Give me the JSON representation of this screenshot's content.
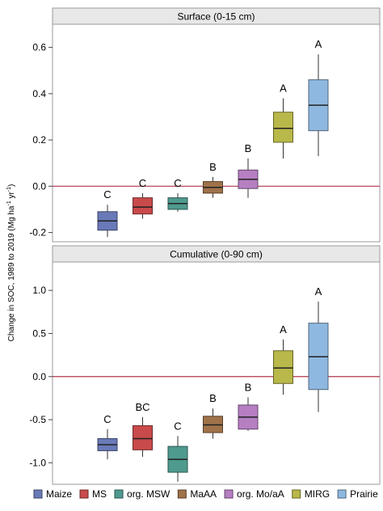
{
  "ylabel": {
    "prefix": "Change in SOC, 1989 to 2019 (Mg ha",
    "sup1": "-1",
    "mid": " yr",
    "sup2": "-1",
    "suffix": ")"
  },
  "legend": {
    "position": "bottom"
  },
  "chart_data": [
    {
      "type": "box",
      "title": "Surface (0-15 cm)",
      "ylim": [
        -0.24,
        0.7
      ],
      "yticks": [
        -0.2,
        0.0,
        0.2,
        0.4,
        0.6
      ],
      "ytick_labels": [
        "-0.2",
        "0.0",
        "0.2",
        "0.4",
        "0.6"
      ],
      "reference_line": 0.0,
      "reference_color": "#b0344b",
      "series": [
        {
          "name": "Maize",
          "color": "#6a7ab8",
          "whisker_low": -0.22,
          "q1": -0.19,
          "median": -0.15,
          "q3": -0.11,
          "whisker_high": -0.08,
          "label": "C"
        },
        {
          "name": "MS",
          "color": "#c94a4a",
          "whisker_low": -0.14,
          "q1": -0.12,
          "median": -0.09,
          "q3": -0.05,
          "whisker_high": -0.03,
          "label": "C"
        },
        {
          "name": "org. MSW",
          "color": "#4f9a8e",
          "whisker_low": -0.11,
          "q1": -0.1,
          "median": -0.075,
          "q3": -0.05,
          "whisker_high": -0.03,
          "label": "C"
        },
        {
          "name": "MaAA",
          "color": "#a0724a",
          "whisker_low": -0.05,
          "q1": -0.03,
          "median": -0.005,
          "q3": 0.02,
          "whisker_high": 0.04,
          "label": "B"
        },
        {
          "name": "org. Mo/aA",
          "color": "#b67fc2",
          "whisker_low": -0.05,
          "q1": -0.01,
          "median": 0.03,
          "q3": 0.07,
          "whisker_high": 0.12,
          "label": "B"
        },
        {
          "name": "MIRG",
          "color": "#b9b84a",
          "whisker_low": 0.12,
          "q1": 0.19,
          "median": 0.25,
          "q3": 0.32,
          "whisker_high": 0.38,
          "label": "A"
        },
        {
          "name": "Prairie",
          "color": "#8fb8e0",
          "whisker_low": 0.13,
          "q1": 0.24,
          "median": 0.35,
          "q3": 0.46,
          "whisker_high": 0.57,
          "label": "A"
        }
      ]
    },
    {
      "type": "box",
      "title": "Cumulative (0-90 cm)",
      "ylim": [
        -1.25,
        1.33
      ],
      "yticks": [
        -1.0,
        -0.5,
        0.0,
        0.5,
        1.0
      ],
      "ytick_labels": [
        "-1.0",
        "-0.5",
        "0.0",
        "0.5",
        "1.0"
      ],
      "reference_line": 0.0,
      "reference_color": "#b0344b",
      "series": [
        {
          "name": "Maize",
          "color": "#6a7ab8",
          "whisker_low": -0.96,
          "q1": -0.86,
          "median": -0.79,
          "q3": -0.72,
          "whisker_high": -0.61,
          "label": "C"
        },
        {
          "name": "MS",
          "color": "#c94a4a",
          "whisker_low": -0.93,
          "q1": -0.85,
          "median": -0.72,
          "q3": -0.57,
          "whisker_high": -0.47,
          "label": "BC"
        },
        {
          "name": "org. MSW",
          "color": "#4f9a8e",
          "whisker_low": -1.22,
          "q1": -1.11,
          "median": -0.96,
          "q3": -0.81,
          "whisker_high": -0.69,
          "label": "C"
        },
        {
          "name": "MaAA",
          "color": "#a0724a",
          "whisker_low": -0.72,
          "q1": -0.65,
          "median": -0.56,
          "q3": -0.46,
          "whisker_high": -0.37,
          "label": "B"
        },
        {
          "name": "org. Mo/aA",
          "color": "#b67fc2",
          "whisker_low": -0.63,
          "q1": -0.61,
          "median": -0.47,
          "q3": -0.33,
          "whisker_high": -0.24,
          "label": "B"
        },
        {
          "name": "MIRG",
          "color": "#b9b84a",
          "whisker_low": -0.21,
          "q1": -0.08,
          "median": 0.1,
          "q3": 0.3,
          "whisker_high": 0.43,
          "label": "A"
        },
        {
          "name": "Prairie",
          "color": "#8fb8e0",
          "whisker_low": -0.41,
          "q1": -0.15,
          "median": 0.23,
          "q3": 0.62,
          "whisker_high": 0.87,
          "label": "A"
        }
      ]
    }
  ]
}
